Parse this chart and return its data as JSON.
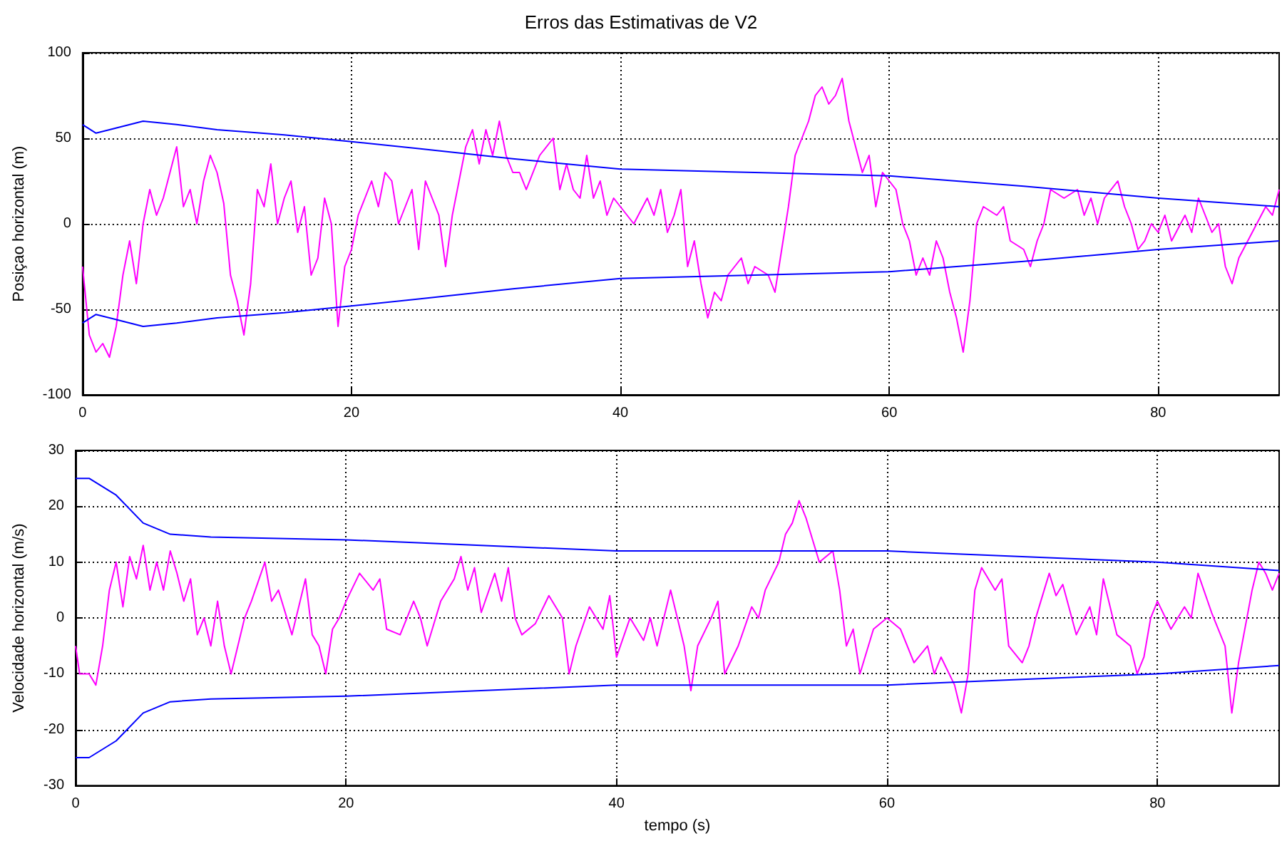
{
  "chart_data": [
    {
      "type": "line",
      "title": "Erros das Estimativas de V2",
      "ylabel": "Posiçao horizontal (m)",
      "xlim": [
        0,
        89
      ],
      "xticks": [
        0,
        20,
        40,
        60,
        80
      ],
      "ylim": [
        -100,
        100
      ],
      "yticks": [
        -100,
        -50,
        0,
        50,
        100
      ],
      "grid": true,
      "marker": "none",
      "series": [
        {
          "color": "#ff00ff",
          "x": [
            0,
            0.5,
            1,
            1.5,
            2,
            2.5,
            3,
            3.5,
            4,
            4.5,
            5,
            5.5,
            6,
            6.5,
            7,
            7.5,
            8,
            8.5,
            9,
            9.5,
            10,
            10.5,
            11,
            11.5,
            12,
            12.5,
            13,
            13.5,
            14,
            14.5,
            15,
            15.5,
            16,
            16.5,
            17,
            17.5,
            18,
            18.5,
            19,
            19.5,
            20,
            20.5,
            21,
            21.5,
            22,
            22.5,
            23,
            23.5,
            24,
            24.5,
            25,
            25.5,
            26,
            26.5,
            27,
            27.5,
            28,
            28.5,
            29,
            29.5,
            30,
            30.5,
            31,
            31.5,
            32,
            32.5,
            33,
            34,
            35,
            35.5,
            36,
            36.5,
            37,
            37.5,
            38,
            38.5,
            39,
            39.5,
            40,
            41,
            42,
            42.5,
            43,
            43.5,
            44,
            44.5,
            45,
            45.5,
            46,
            46.5,
            47,
            47.5,
            48,
            49,
            49.5,
            50,
            51,
            51.5,
            52,
            52.5,
            53,
            54,
            54.5,
            55,
            55.5,
            56,
            56.5,
            57,
            58,
            58.5,
            59,
            59.5,
            60,
            60.5,
            61,
            61.5,
            62,
            62.5,
            63,
            63.5,
            64,
            64.5,
            65,
            65.5,
            66,
            66.5,
            67,
            68,
            68.5,
            69,
            70,
            70.5,
            71,
            71.5,
            72,
            73,
            74,
            74.5,
            75,
            75.5,
            76,
            77,
            77.5,
            78,
            78.5,
            79,
            79.5,
            80,
            80.5,
            81,
            82,
            82.5,
            83,
            83.5,
            84,
            84.5,
            85,
            85.5,
            86,
            87,
            88,
            88.5,
            89
          ],
          "values": [
            -25,
            -65,
            -75,
            -70,
            -78,
            -60,
            -30,
            -10,
            -35,
            0,
            20,
            5,
            15,
            30,
            45,
            10,
            20,
            0,
            25,
            40,
            30,
            12,
            -30,
            -45,
            -65,
            -35,
            20,
            10,
            35,
            0,
            15,
            25,
            -5,
            10,
            -30,
            -20,
            15,
            0,
            -60,
            -25,
            -15,
            5,
            15,
            25,
            10,
            30,
            25,
            0,
            10,
            20,
            -15,
            25,
            15,
            5,
            -25,
            5,
            25,
            45,
            55,
            35,
            55,
            40,
            60,
            40,
            30,
            30,
            20,
            40,
            50,
            20,
            35,
            20,
            15,
            40,
            15,
            25,
            5,
            15,
            10,
            0,
            15,
            5,
            20,
            -5,
            5,
            20,
            -25,
            -10,
            -35,
            -55,
            -40,
            -45,
            -30,
            -20,
            -35,
            -25,
            -30,
            -40,
            -15,
            10,
            40,
            60,
            75,
            80,
            70,
            75,
            85,
            60,
            30,
            40,
            10,
            30,
            25,
            20,
            0,
            -10,
            -30,
            -20,
            -30,
            -10,
            -20,
            -40,
            -55,
            -75,
            -45,
            0,
            10,
            5,
            10,
            -10,
            -15,
            -25,
            -10,
            0,
            20,
            15,
            20,
            5,
            15,
            0,
            15,
            25,
            10,
            0,
            -15,
            -10,
            0,
            -5,
            5,
            -10,
            5,
            -5,
            15,
            5,
            -5,
            0,
            -25,
            -35,
            -20,
            -5,
            10,
            5,
            20
          ]
        },
        {
          "color": "#0000ff",
          "x": [
            0,
            1,
            2,
            4.5,
            7,
            10,
            15,
            20,
            25,
            32,
            40,
            50,
            60,
            70,
            80,
            89
          ],
          "values": [
            58,
            53,
            55,
            60,
            58,
            55,
            52,
            48,
            44,
            38,
            32,
            30,
            28,
            22,
            15,
            10
          ]
        },
        {
          "color": "#0000ff",
          "x": [
            0,
            1,
            2,
            4.5,
            7,
            10,
            15,
            20,
            25,
            32,
            40,
            50,
            60,
            70,
            80,
            89
          ],
          "values": [
            -58,
            -53,
            -55,
            -60,
            -58,
            -55,
            -52,
            -48,
            -44,
            -38,
            -32,
            -30,
            -28,
            -22,
            -15,
            -10
          ]
        }
      ]
    },
    {
      "type": "line",
      "xlabel": "tempo (s)",
      "ylabel": "Velocidade horizontal (m/s)",
      "xlim": [
        0,
        89
      ],
      "xticks": [
        0,
        20,
        40,
        60,
        80
      ],
      "ylim": [
        -30,
        30
      ],
      "yticks": [
        -30,
        -20,
        -10,
        0,
        10,
        20,
        30
      ],
      "grid": true,
      "marker": "none",
      "series": [
        {
          "color": "#ff00ff",
          "x": [
            0,
            0.3,
            1,
            1.5,
            2,
            2.5,
            3,
            3.5,
            4,
            4.5,
            5,
            5.5,
            6,
            6.5,
            7,
            7.5,
            8,
            8.5,
            9,
            9.5,
            10,
            10.5,
            11,
            11.5,
            12,
            12.5,
            13,
            14,
            14.5,
            15,
            16,
            16.5,
            17,
            17.5,
            18,
            18.5,
            19,
            19.5,
            20,
            21,
            22,
            22.5,
            23,
            24,
            25,
            25.5,
            26,
            27,
            28,
            28.5,
            29,
            29.5,
            30,
            31,
            31.5,
            32,
            32.5,
            33,
            34,
            35,
            36,
            36.5,
            37,
            38,
            39,
            39.5,
            40,
            41,
            42,
            42.5,
            43,
            43.5,
            44,
            45,
            45.5,
            46,
            47,
            47.5,
            48,
            49,
            50,
            50.5,
            51,
            52,
            52.5,
            53,
            53.5,
            54,
            55,
            56,
            56.5,
            57,
            57.5,
            58,
            59,
            60,
            61,
            62,
            63,
            63.5,
            64,
            65,
            65.5,
            66,
            66.5,
            67,
            68,
            68.5,
            69,
            70,
            70.5,
            71,
            72,
            72.5,
            73,
            74,
            75,
            75.5,
            76,
            77,
            78,
            78.5,
            79,
            79.5,
            80,
            81,
            82,
            82.5,
            83,
            84,
            85,
            85.5,
            86,
            87,
            87.5,
            88,
            88.5,
            89
          ],
          "values": [
            -5,
            -10,
            -10,
            -12,
            -5,
            5,
            10,
            2,
            11,
            7,
            13,
            5,
            10,
            5,
            12,
            8,
            3,
            7,
            -3,
            0,
            -5,
            3,
            -5,
            -10,
            -5,
            0,
            3,
            10,
            3,
            5,
            -3,
            2,
            7,
            -3,
            -5,
            -10,
            -2,
            0,
            3,
            8,
            5,
            7,
            -2,
            -3,
            3,
            0,
            -5,
            3,
            7,
            11,
            5,
            9,
            1,
            8,
            3,
            9,
            0,
            -3,
            -1,
            4,
            0,
            -10,
            -5,
            2,
            -2,
            4,
            -7,
            0,
            -4,
            0,
            -5,
            0,
            5,
            -5,
            -13,
            -5,
            0,
            3,
            -10,
            -5,
            2,
            0,
            5,
            10,
            15,
            17,
            21,
            18,
            10,
            12,
            5,
            -5,
            -2,
            -10,
            -2,
            0,
            -2,
            -8,
            -5,
            -10,
            -7,
            -12,
            -17,
            -10,
            5,
            9,
            5,
            7,
            -5,
            -8,
            -5,
            0,
            8,
            4,
            6,
            -3,
            2,
            -3,
            7,
            -3,
            -5,
            -10,
            -7,
            0,
            3,
            -2,
            2,
            0,
            8,
            1,
            -5,
            -17,
            -8,
            5,
            10,
            8,
            5,
            8
          ]
        },
        {
          "color": "#0000ff",
          "x": [
            0,
            1,
            3,
            5,
            7,
            10,
            20,
            40,
            60,
            70,
            80,
            89
          ],
          "values": [
            25,
            25,
            22,
            17,
            15,
            14.5,
            14,
            12,
            12,
            11,
            10,
            8.5
          ]
        },
        {
          "color": "#0000ff",
          "x": [
            0,
            1,
            3,
            5,
            7,
            10,
            20,
            40,
            60,
            70,
            80,
            89
          ],
          "values": [
            -25,
            -25,
            -22,
            -17,
            -15,
            -14.5,
            -14,
            -12,
            -12,
            -11,
            -10,
            -8.5
          ]
        }
      ]
    }
  ]
}
